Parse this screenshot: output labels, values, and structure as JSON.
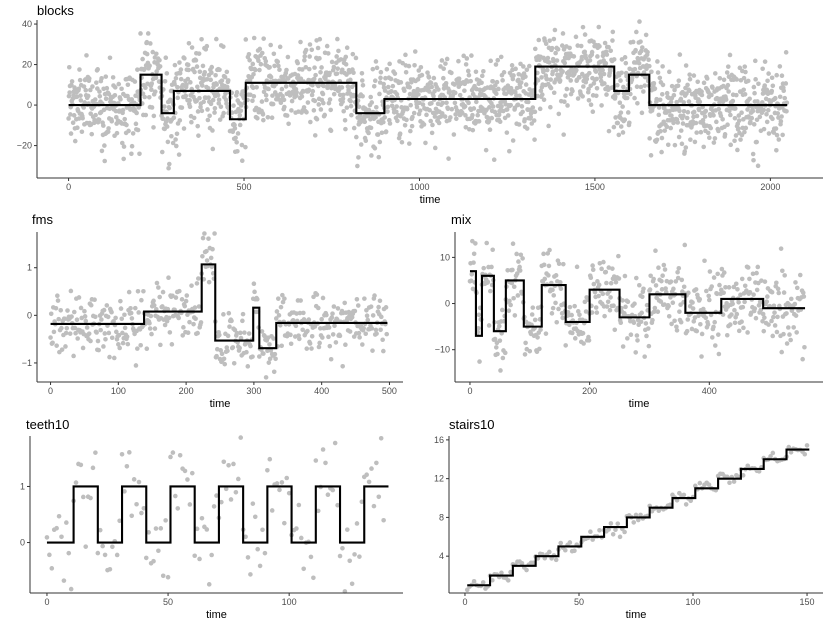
{
  "chart_data": [
    {
      "id": "blocks",
      "type": "scatter",
      "title": "blocks",
      "xlabel": "time",
      "ylabel": "",
      "xlim": [
        -90,
        2150
      ],
      "ylim": [
        -36,
        42
      ],
      "xticks": [
        0,
        500,
        1000,
        1500,
        2000
      ],
      "yticks": [
        -20,
        0,
        20,
        40
      ],
      "n_points": 2048,
      "noise_sd": 10,
      "fit_steps": [
        [
          0,
          205,
          0
        ],
        [
          205,
          265,
          15
        ],
        [
          265,
          300,
          -4
        ],
        [
          300,
          460,
          7
        ],
        [
          460,
          505,
          -7
        ],
        [
          505,
          820,
          11
        ],
        [
          820,
          900,
          -4
        ],
        [
          900,
          1330,
          3
        ],
        [
          1330,
          1555,
          19
        ],
        [
          1555,
          1597,
          7
        ],
        [
          1597,
          1655,
          15
        ],
        [
          1655,
          2048,
          0
        ]
      ]
    },
    {
      "id": "fms",
      "type": "scatter",
      "title": "fms",
      "xlabel": "time",
      "ylabel": "",
      "xlim": [
        -20,
        520
      ],
      "ylim": [
        -1.4,
        1.75
      ],
      "xticks": [
        0,
        100,
        200,
        300,
        400,
        500
      ],
      "yticks": [
        -1,
        0,
        1
      ],
      "n_points": 497,
      "noise_sd": 0.3,
      "fit_steps": [
        [
          0,
          138,
          -0.18
        ],
        [
          138,
          223,
          0.08
        ],
        [
          223,
          243,
          1.07
        ],
        [
          243,
          299,
          -0.53
        ],
        [
          299,
          308,
          0.16
        ],
        [
          308,
          333,
          -0.69
        ],
        [
          333,
          497,
          -0.16
        ]
      ]
    },
    {
      "id": "mix",
      "type": "scatter",
      "title": "mix",
      "xlabel": "time",
      "ylabel": "",
      "xlim": [
        -25,
        590
      ],
      "ylim": [
        -17,
        15.5
      ],
      "xticks": [
        0,
        200,
        400
      ],
      "yticks": [
        -10,
        0,
        10
      ],
      "n_points": 560,
      "noise_sd": 4,
      "fit_steps": [
        [
          0,
          10,
          7
        ],
        [
          10,
          20,
          -7
        ],
        [
          20,
          40,
          6
        ],
        [
          40,
          60,
          -6
        ],
        [
          60,
          90,
          5
        ],
        [
          90,
          120,
          -5
        ],
        [
          120,
          160,
          4
        ],
        [
          160,
          200,
          -4
        ],
        [
          200,
          250,
          3
        ],
        [
          250,
          300,
          -3
        ],
        [
          300,
          360,
          2
        ],
        [
          360,
          420,
          -2
        ],
        [
          420,
          490,
          1
        ],
        [
          490,
          560,
          -1
        ]
      ]
    },
    {
      "id": "teeth10",
      "type": "scatter",
      "title": "teeth10",
      "xlabel": "time",
      "ylabel": "",
      "xlim": [
        -7,
        147
      ],
      "ylim": [
        -0.9,
        1.9
      ],
      "xticks": [
        0,
        50,
        100
      ],
      "yticks": [
        0,
        1
      ],
      "n_points": 140,
      "noise_sd": 0.4,
      "fit_steps": [
        [
          0,
          11,
          0
        ],
        [
          11,
          21,
          1
        ],
        [
          21,
          31,
          0
        ],
        [
          31,
          41,
          1
        ],
        [
          41,
          51,
          0
        ],
        [
          51,
          61,
          1
        ],
        [
          61,
          71,
          0
        ],
        [
          71,
          81,
          1
        ],
        [
          81,
          91,
          0
        ],
        [
          91,
          101,
          1
        ],
        [
          101,
          111,
          0
        ],
        [
          111,
          121,
          1
        ],
        [
          121,
          131,
          0
        ],
        [
          131,
          141,
          1
        ]
      ]
    },
    {
      "id": "stairs10",
      "type": "scatter",
      "title": "stairs10",
      "xlabel": "time",
      "ylabel": "",
      "xlim": [
        -7,
        157
      ],
      "ylim": [
        0.2,
        16.4
      ],
      "xticks": [
        0,
        50,
        100,
        150
      ],
      "yticks": [
        4,
        8,
        12,
        16
      ],
      "n_points": 150,
      "noise_sd": 0.3,
      "fit_steps": [
        [
          1,
          11,
          1
        ],
        [
          11,
          21,
          2
        ],
        [
          21,
          31,
          3
        ],
        [
          31,
          41,
          4
        ],
        [
          41,
          51,
          5
        ],
        [
          51,
          61,
          6
        ],
        [
          61,
          71,
          7
        ],
        [
          71,
          81,
          8
        ],
        [
          81,
          91,
          9
        ],
        [
          91,
          101,
          10
        ],
        [
          101,
          111,
          11
        ],
        [
          111,
          121,
          12
        ],
        [
          121,
          131,
          13
        ],
        [
          131,
          141,
          14
        ],
        [
          141,
          151,
          15
        ]
      ]
    }
  ],
  "colors": {
    "points": "#bebebe",
    "fit_line": "#000000",
    "axis": "#333333",
    "tick_text": "#4d4d4d"
  }
}
